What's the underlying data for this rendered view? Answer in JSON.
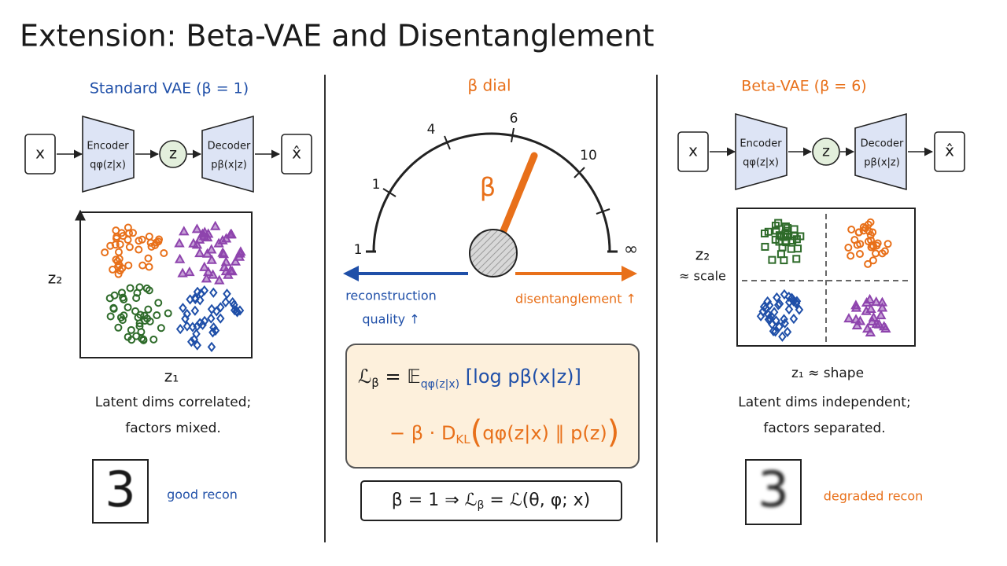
{
  "title": "Extension: Beta-VAE and Disentanglement",
  "left": {
    "heading": "Standard VAE (β = 1)",
    "pipeline": {
      "input": "x",
      "encoder": "Encoder",
      "encoder_dist": "qφ(z|x)",
      "latent": "z",
      "decoder": "Decoder",
      "decoder_dist": "pβ(x|z)",
      "output": "x̂"
    },
    "y_axis": [
      "z₂"
    ],
    "x_axis": "z₁",
    "caption": [
      "Latent dims correlated;",
      "factors mixed."
    ],
    "digit": "3",
    "recon": "good recon"
  },
  "dial": {
    "heading": "β dial",
    "min": "1",
    "max": "∞",
    "ticks": [
      "1",
      "4",
      "6",
      "10"
    ],
    "needle": "β",
    "left_arrow": [
      "reconstruction",
      "quality ↑"
    ],
    "right_arrow": "disentanglement ↑"
  },
  "formula": {
    "line1": [
      "ℒ",
      "β",
      " = 𝔼",
      "qφ(z|x)",
      " [log pβ(x|z)]"
    ],
    "line2": [
      "− β · D",
      "KL",
      "(",
      "qφ(z|x) ∥ p(z)",
      ")"
    ],
    "special_case": [
      "β = 1  ⇒  ℒ",
      "β",
      " = ℒ(θ, φ; x)"
    ]
  },
  "right": {
    "heading": "Beta-VAE (β = 6)",
    "pipeline": {
      "input": "x",
      "encoder": "Encoder",
      "encoder_dist": "qφ(z|x)",
      "latent": "z",
      "decoder": "Decoder",
      "decoder_dist": "pβ(x|z)",
      "output": "x̂"
    },
    "y_axis": [
      "z₂",
      "≈ scale"
    ],
    "x_axis": "z₁ ≈ shape",
    "caption": [
      "Latent dims independent;",
      "factors separated."
    ],
    "digit": "3",
    "recon": "degraded recon"
  }
}
